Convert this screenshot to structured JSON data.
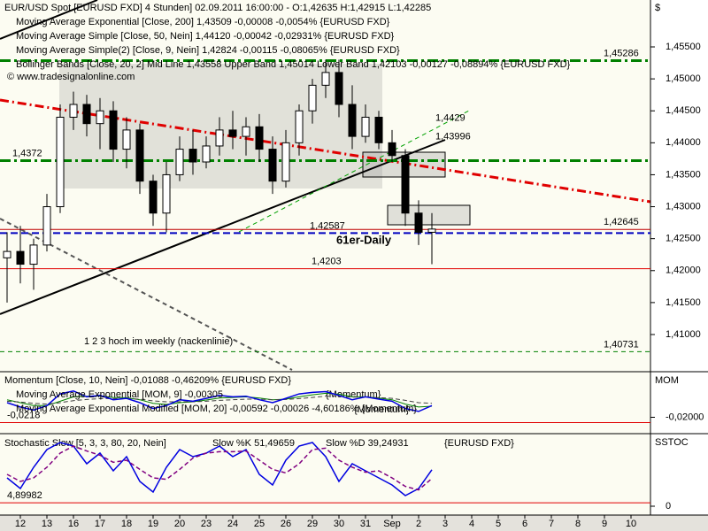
{
  "chart_data": [
    {
      "type": "candlestick",
      "title": "EUR/USD Spot [EURUSD FXD]  4 Stunden] 02.09.2011 16:00:00 - O:1,42635 H:1,42915 L:1,42285",
      "legend": [
        "Moving Average Exponential [Close, 200] 1,43509 -0,00008 -0,0054% {EURUSD FXD}",
        "Moving Average Simple [Close, 50, Nein] 1,44120 -0,00042 -0,02931% {EURUSD FXD}",
        "Moving Average Simple(2) [Close, 9, Nein] 1,42824 -0,00115 -0,08065% {EURUSD FXD}",
        "Bollinger Bands [Close, 20, 2] Mid Line 1,43558 Upper Band 1,45014 Lower Band 1,42103 -0,00127 -0,08894% {EURUSD FXD}"
      ],
      "copyright": "© www.tradesignalonline.com",
      "currency": "$",
      "annotations": [
        "61er-Daily",
        "1 2 3 hoch im weekly (nackenlinie)"
      ],
      "x": [
        -0.5,
        0,
        0.5,
        1,
        1.5,
        2,
        2.5,
        3,
        3.5,
        4,
        4.5,
        5,
        5.5,
        6,
        6.5,
        7,
        7.5,
        8,
        8.5,
        9,
        9.5,
        10,
        10.5,
        11,
        11.5,
        12,
        12.5,
        13,
        13.5,
        14,
        14.5,
        15,
        15.5
      ],
      "open": [
        1.422,
        1.423,
        1.421,
        1.424,
        1.43,
        1.444,
        1.446,
        1.443,
        1.445,
        1.439,
        1.442,
        1.434,
        1.429,
        1.435,
        1.439,
        1.437,
        1.4395,
        1.442,
        1.441,
        1.4425,
        1.439,
        1.434,
        1.44,
        1.445,
        1.449,
        1.451,
        1.446,
        1.441,
        1.444,
        1.44,
        1.438,
        1.429,
        1.426
      ],
      "high": [
        1.426,
        1.427,
        1.425,
        1.432,
        1.446,
        1.448,
        1.4475,
        1.447,
        1.4465,
        1.444,
        1.443,
        1.435,
        1.437,
        1.441,
        1.442,
        1.441,
        1.444,
        1.445,
        1.444,
        1.4445,
        1.441,
        1.442,
        1.446,
        1.45,
        1.453,
        1.453,
        1.449,
        1.446,
        1.445,
        1.442,
        1.439,
        1.431,
        1.429
      ],
      "low": [
        1.415,
        1.418,
        1.417,
        1.423,
        1.429,
        1.442,
        1.441,
        1.439,
        1.437,
        1.436,
        1.432,
        1.427,
        1.426,
        1.434,
        1.435,
        1.436,
        1.438,
        1.439,
        1.438,
        1.437,
        1.432,
        1.433,
        1.438,
        1.443,
        1.447,
        1.444,
        1.439,
        1.44,
        1.439,
        1.437,
        1.427,
        1.424,
        1.421
      ],
      "close": [
        1.423,
        1.421,
        1.424,
        1.43,
        1.444,
        1.446,
        1.443,
        1.445,
        1.439,
        1.442,
        1.434,
        1.429,
        1.435,
        1.439,
        1.437,
        1.4395,
        1.442,
        1.441,
        1.4425,
        1.439,
        1.434,
        1.44,
        1.445,
        1.449,
        1.451,
        1.446,
        1.441,
        1.444,
        1.44,
        1.438,
        1.429,
        1.426,
        1.4265
      ],
      "levels": [
        {
          "value": 1.45286,
          "label": "1,45286",
          "color": "#008000"
        },
        {
          "value": 1.4372,
          "label": "1,4372",
          "color": "#008000"
        },
        {
          "value": 1.42587,
          "label": "1,42587",
          "color": "#0000c0"
        },
        {
          "value": 1.42645,
          "label": "1,42645",
          "color": "#c00000"
        },
        {
          "value": 1.4203,
          "label": "1,4203",
          "color": "#e00000"
        },
        {
          "value": 1.40731,
          "label": "1,40731",
          "color": "#008000"
        }
      ],
      "line_labels": [
        {
          "value": 1.4429,
          "label": "1,4429",
          "color": "#008000"
        },
        {
          "value": 1.43996,
          "label": "1,43996",
          "color": "#000000"
        }
      ],
      "xlim": [
        -0.767,
        23.733
      ],
      "xticks": [
        {
          "value": 0,
          "label": "12"
        },
        {
          "value": 1,
          "label": "13"
        },
        {
          "value": 2,
          "label": "16"
        },
        {
          "value": 3,
          "label": "17"
        },
        {
          "value": 4,
          "label": "18"
        },
        {
          "value": 5,
          "label": "19"
        },
        {
          "value": 6,
          "label": "20"
        },
        {
          "value": 7,
          "label": "23"
        },
        {
          "value": 8,
          "label": "24"
        },
        {
          "value": 9,
          "label": "25"
        },
        {
          "value": 10,
          "label": "26"
        },
        {
          "value": 11,
          "label": "29"
        },
        {
          "value": 12,
          "label": "30"
        },
        {
          "value": 13,
          "label": "31"
        },
        {
          "value": 14,
          "label": "Sep"
        },
        {
          "value": 15,
          "label": "2"
        },
        {
          "value": 16,
          "label": "3"
        },
        {
          "value": 17,
          "label": "4"
        },
        {
          "value": 18,
          "label": "5"
        },
        {
          "value": 19,
          "label": "6"
        },
        {
          "value": 20,
          "label": "7"
        },
        {
          "value": 21,
          "label": "8"
        },
        {
          "value": 22,
          "label": "9"
        },
        {
          "value": 23,
          "label": "10"
        }
      ],
      "ylim": [
        1.40446,
        1.46234
      ],
      "yticks": [
        {
          "value": 1.41,
          "label": "1,41000"
        },
        {
          "value": 1.415,
          "label": "1,41500"
        },
        {
          "value": 1.42,
          "label": "1,42000"
        },
        {
          "value": 1.425,
          "label": "1,42500"
        },
        {
          "value": 1.43,
          "label": "1,43000"
        },
        {
          "value": 1.435,
          "label": "1,43500"
        },
        {
          "value": 1.44,
          "label": "1,44000"
        },
        {
          "value": 1.445,
          "label": "1,44500"
        },
        {
          "value": 1.45,
          "label": "1,45000"
        },
        {
          "value": 1.455,
          "label": "1,45500"
        }
      ]
    },
    {
      "type": "line",
      "title": "Momentum [Close, 10, Nein] -0,01088 -0,46209% {EURUSD FXD}",
      "axis_title": "MOM",
      "notes": [
        "{Momentum}",
        "{Momentum}"
      ],
      "x": [
        -0.5,
        0,
        0.5,
        1,
        1.5,
        2,
        2.5,
        3,
        3.5,
        4,
        4.5,
        5,
        5.5,
        6,
        6.5,
        7,
        7.5,
        8,
        8.5,
        9,
        9.5,
        10,
        10.5,
        11,
        11.5,
        12,
        12.5,
        13,
        13.5,
        14,
        14.5,
        15,
        15.5
      ],
      "series": [
        {
          "name": "Moving Average Exponential [MOM, 9] -0,00305",
          "color": "#008000",
          "values": [
            -0.014,
            -0.015,
            -0.016,
            -0.016,
            -0.0145,
            -0.013,
            -0.0128,
            -0.0127,
            -0.0132,
            -0.0133,
            -0.014,
            -0.0152,
            -0.0156,
            -0.015,
            -0.0147,
            -0.0141,
            -0.0134,
            -0.0132,
            -0.013,
            -0.0134,
            -0.014,
            -0.0138,
            -0.013,
            -0.0123,
            -0.0118,
            -0.0121,
            -0.013,
            -0.013,
            -0.0134,
            -0.014,
            -0.0155,
            -0.0165,
            -0.0162
          ]
        },
        {
          "name": "Moving Average Exponential Modified [MOM, 20] -0,00592 -0,00026 -4,60186% {Momentum}",
          "color": "#404040",
          "values": [
            -0.0145,
            -0.0148,
            -0.0152,
            -0.0155,
            -0.015,
            -0.0143,
            -0.0139,
            -0.0136,
            -0.0136,
            -0.0136,
            -0.0138,
            -0.0144,
            -0.0147,
            -0.0147,
            -0.0147,
            -0.0145,
            -0.0142,
            -0.014,
            -0.0138,
            -0.0138,
            -0.014,
            -0.0139,
            -0.0136,
            -0.0132,
            -0.0128,
            -0.0128,
            -0.0131,
            -0.0131,
            -0.0133,
            -0.0135,
            -0.0142,
            -0.015,
            -0.0152
          ]
        },
        {
          "name": "Momentum",
          "color": "#0000e0",
          "values": [
            -0.015,
            -0.0165,
            -0.0175,
            -0.016,
            -0.012,
            -0.011,
            -0.013,
            -0.0125,
            -0.014,
            -0.0135,
            -0.015,
            -0.017,
            -0.016,
            -0.014,
            -0.0145,
            -0.0135,
            -0.0125,
            -0.013,
            -0.0128,
            -0.014,
            -0.015,
            -0.0135,
            -0.012,
            -0.0115,
            -0.0112,
            -0.0125,
            -0.014,
            -0.013,
            -0.0138,
            -0.0145,
            -0.017,
            -0.018,
            -0.016
          ]
        }
      ],
      "levels": [
        {
          "value": -0.0218,
          "label": "-0,0218",
          "color": "#e00000"
        }
      ],
      "ylim": [
        -0.025,
        -0.005
      ],
      "yticks": [
        {
          "value": -0.02,
          "label": "-0,02000"
        }
      ]
    },
    {
      "type": "line",
      "title": "Stochastic Slow [5, 3, 3, 80, 20, Nein]",
      "axis_title": "SSTOC",
      "notes": [
        "{EURUSD FXD}"
      ],
      "x": [
        -0.5,
        0,
        0.5,
        1,
        1.5,
        2,
        2.5,
        3,
        3.5,
        4,
        4.5,
        5,
        5.5,
        6,
        6.5,
        7,
        7.5,
        8,
        8.5,
        9,
        9.5,
        10,
        10.5,
        11,
        11.5,
        12,
        12.5,
        13,
        13.5,
        14,
        14.5,
        15,
        15.5
      ],
      "series": [
        {
          "name": "Slow %K 51,49659",
          "color": "#0000e0",
          "values": [
            40,
            25,
            55,
            80,
            90,
            85,
            60,
            75,
            50,
            70,
            35,
            20,
            55,
            80,
            70,
            75,
            85,
            70,
            80,
            45,
            30,
            65,
            85,
            90,
            70,
            35,
            60,
            50,
            40,
            30,
            15,
            25,
            51.5
          ]
        },
        {
          "name": "Slow %D 39,24931",
          "color": "#800080",
          "values": [
            45,
            35,
            40,
            55,
            75,
            85,
            78,
            72,
            62,
            65,
            52,
            40,
            38,
            52,
            68,
            75,
            77,
            77,
            78,
            65,
            52,
            47,
            60,
            80,
            82,
            65,
            55,
            48,
            50,
            40,
            28,
            23,
            39.2
          ]
        }
      ],
      "levels": [
        {
          "value": 4.89982,
          "label": "4,89982",
          "color": "#e00000"
        }
      ],
      "ylim": [
        -10,
        100
      ],
      "yticks": [
        0
      ]
    }
  ]
}
